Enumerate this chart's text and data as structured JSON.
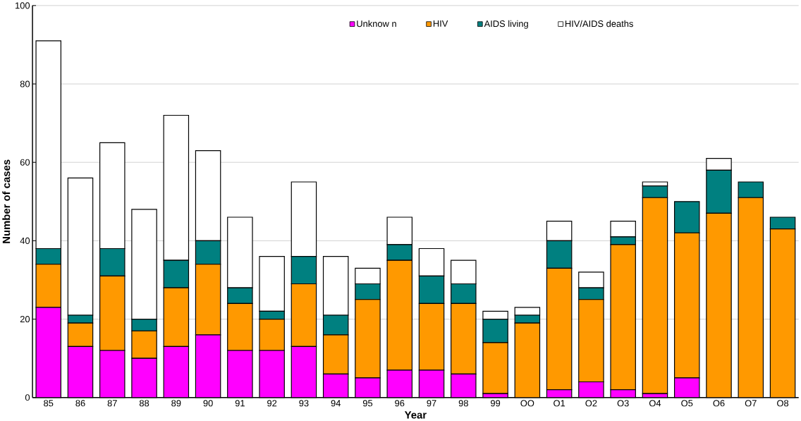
{
  "chart_data": {
    "type": "bar",
    "stacked": true,
    "xlabel": "Year",
    "ylabel": "Number of cases",
    "categories": [
      "85",
      "86",
      "87",
      "88",
      "89",
      "90",
      "91",
      "92",
      "93",
      "94",
      "95",
      "96",
      "97",
      "98",
      "99",
      "OO",
      "O1",
      "O2",
      "O3",
      "O4",
      "O5",
      "O6",
      "O7",
      "O8"
    ],
    "series": [
      {
        "name": "Unknow n",
        "color": "#ff00ff",
        "values": [
          23,
          13,
          12,
          10,
          13,
          16,
          12,
          12,
          13,
          6,
          5,
          7,
          7,
          6,
          1,
          0,
          2,
          4,
          2,
          1,
          5,
          0,
          0,
          0
        ]
      },
      {
        "name": "HIV",
        "color": "#ff9900",
        "values": [
          11,
          6,
          19,
          7,
          15,
          18,
          12,
          8,
          16,
          10,
          20,
          28,
          17,
          18,
          13,
          19,
          31,
          21,
          37,
          50,
          37,
          47,
          51,
          43
        ]
      },
      {
        "name": "AIDS living",
        "color": "#008080",
        "values": [
          4,
          2,
          7,
          3,
          7,
          6,
          4,
          2,
          7,
          5,
          4,
          4,
          7,
          5,
          6,
          2,
          7,
          3,
          2,
          3,
          8,
          11,
          4,
          3
        ]
      },
      {
        "name": "HIV/AIDS deaths",
        "color": "#ffffff",
        "values": [
          53,
          35,
          27,
          28,
          37,
          23,
          18,
          14,
          19,
          15,
          4,
          7,
          7,
          6,
          2,
          2,
          5,
          4,
          4,
          1,
          0,
          3,
          0,
          0
        ]
      }
    ],
    "ylim": [
      0,
      100
    ],
    "yticks": [
      0,
      20,
      40,
      60,
      80,
      100
    ],
    "grid": "y",
    "legend": "top"
  }
}
